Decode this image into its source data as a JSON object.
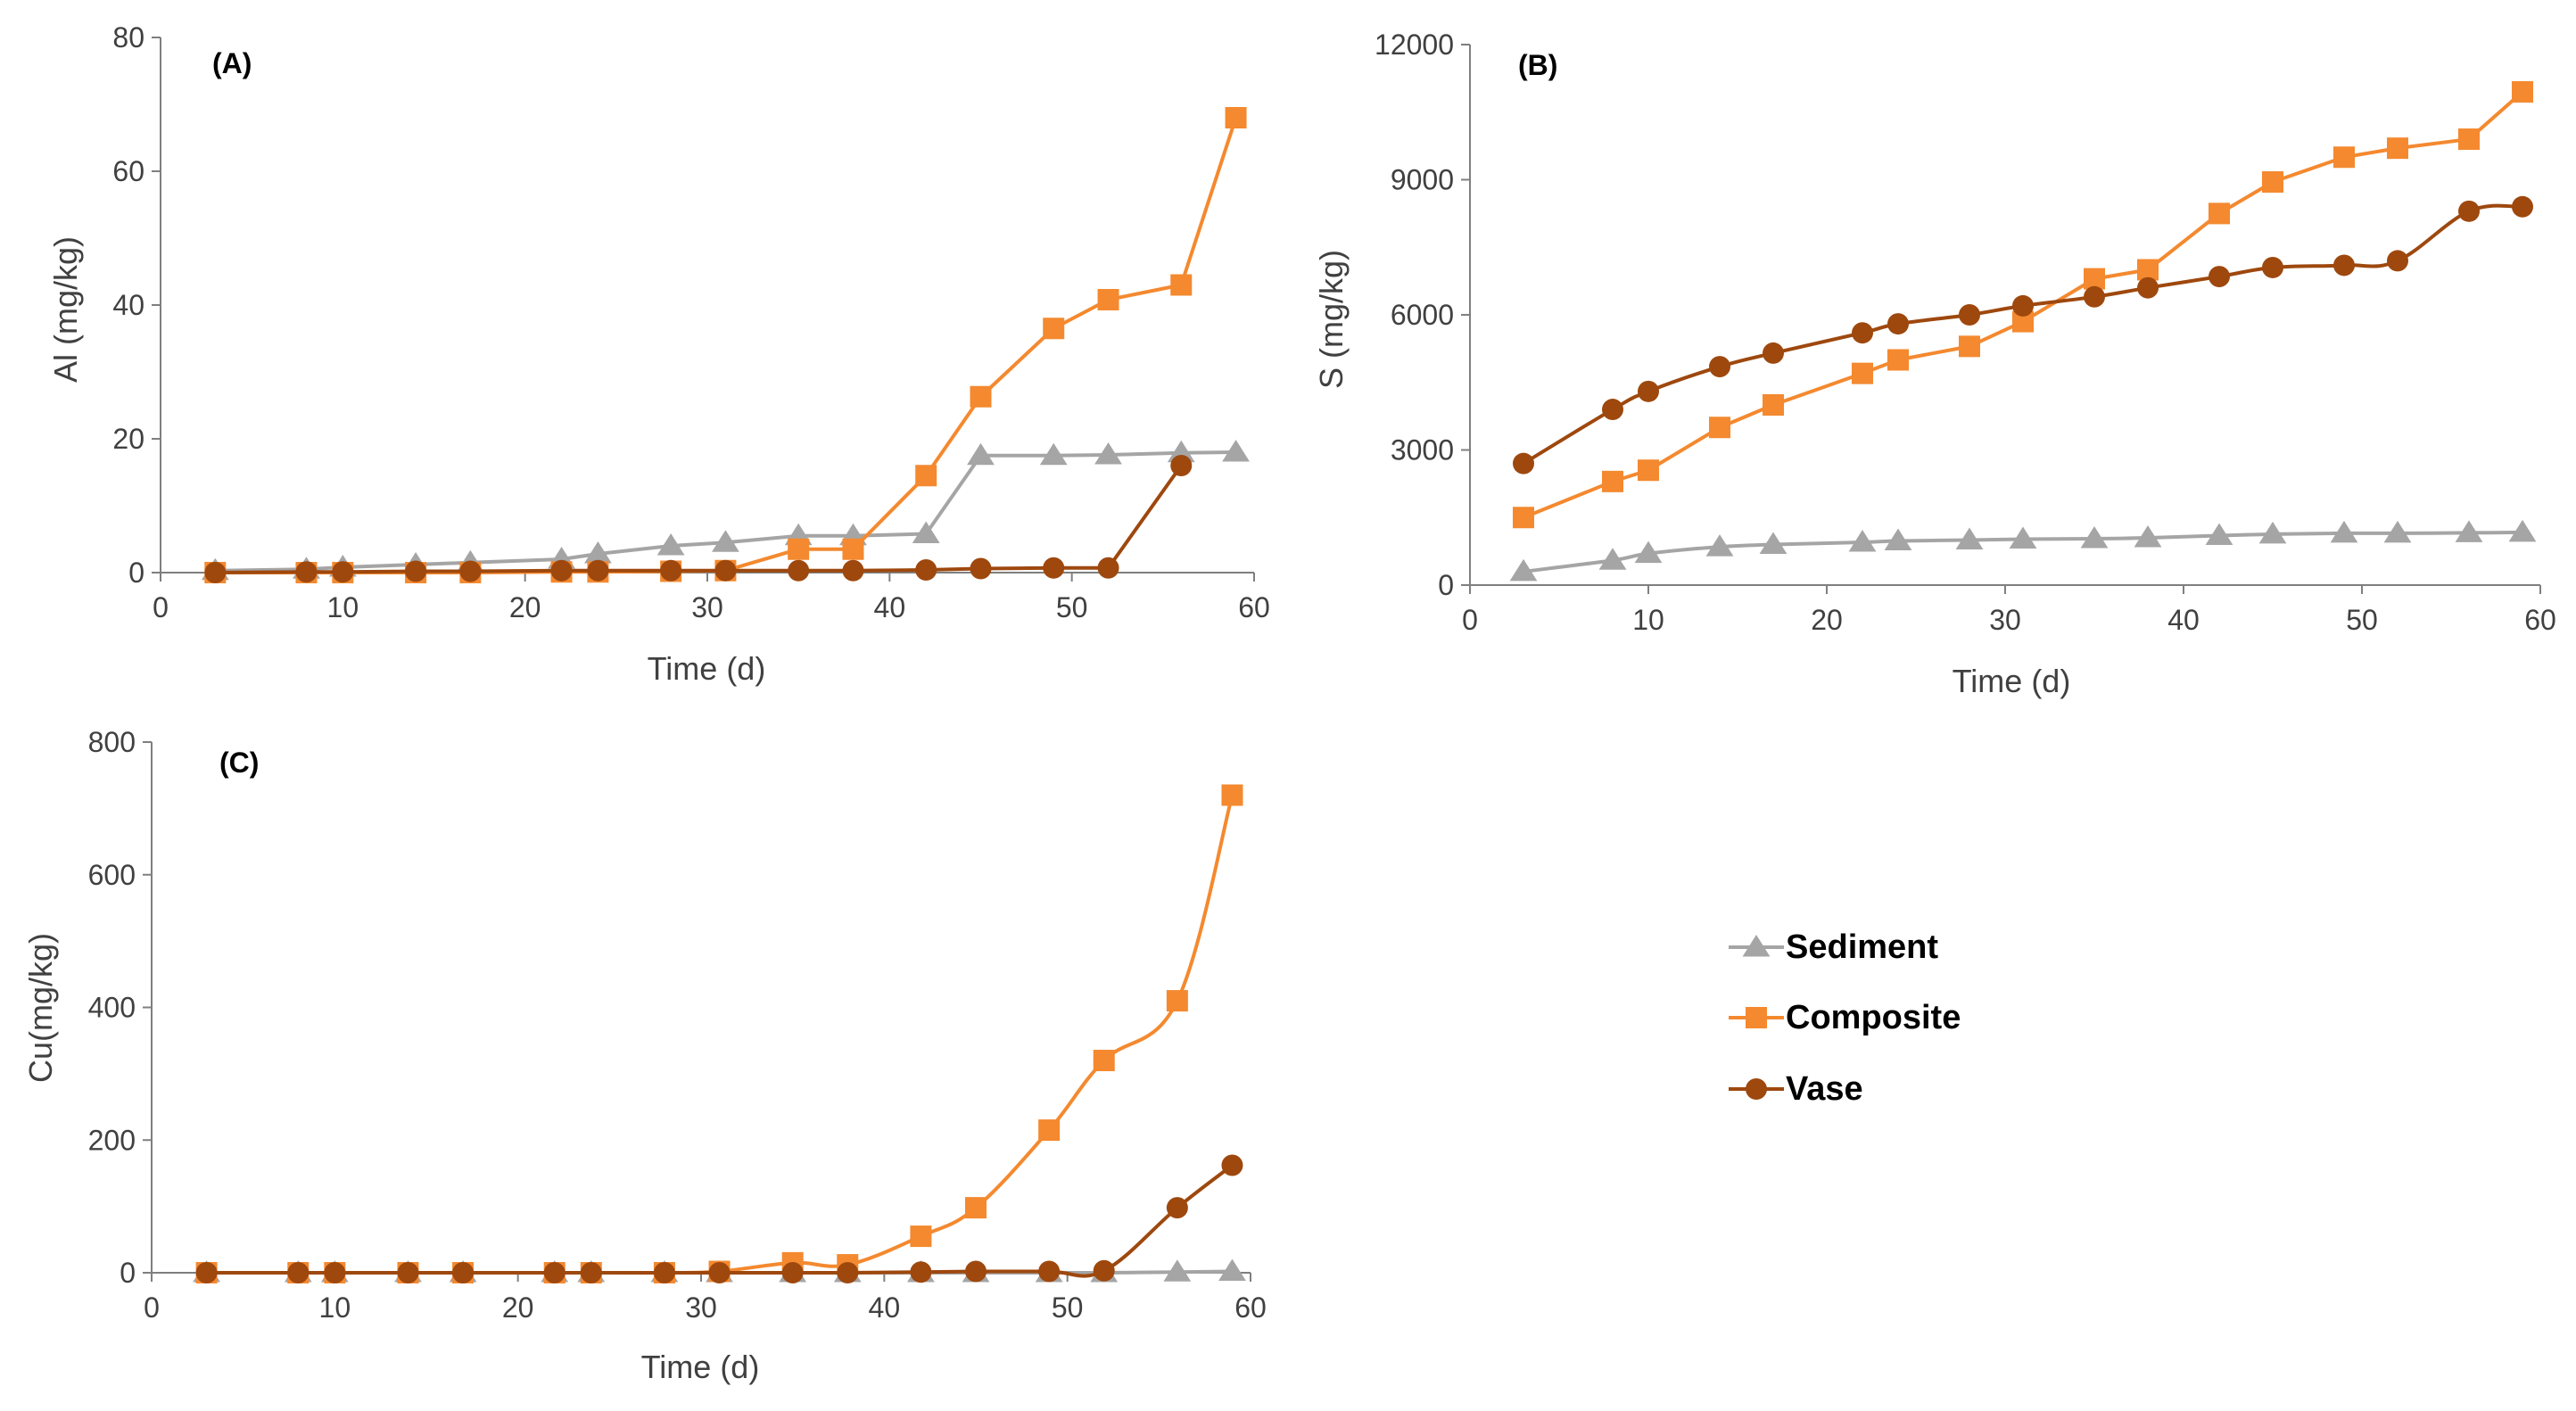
{
  "colors": {
    "sediment": "#A5A5A5",
    "composite": "#F4892F",
    "vase": "#9E480E",
    "axis": "#7F7F7F",
    "text": "#404040"
  },
  "legend": {
    "items": [
      {
        "label": "Sediment",
        "series": "sediment",
        "marker": "triangle"
      },
      {
        "label": "Composite",
        "series": "composite",
        "marker": "square"
      },
      {
        "label": "Vase",
        "series": "vase",
        "marker": "circle"
      }
    ]
  },
  "chart_data": [
    {
      "id": "A",
      "type": "line",
      "title": "(A)",
      "xlabel": "Time (d)",
      "ylabel": "Al (mg/kg)",
      "xlim": [
        0,
        60
      ],
      "ylim": [
        0,
        80
      ],
      "xticks": [
        0,
        10,
        20,
        30,
        40,
        50,
        60
      ],
      "yticks": [
        0,
        20,
        40,
        60,
        80
      ],
      "grid": false,
      "series": [
        {
          "name": "Sediment",
          "key": "sediment",
          "marker": "triangle",
          "smooth": false,
          "x": [
            3,
            8,
            10,
            14,
            17,
            22,
            24,
            28,
            31,
            35,
            38,
            42,
            45,
            49,
            52,
            56,
            59
          ],
          "values": [
            0.3,
            0.5,
            0.8,
            1.2,
            1.5,
            2,
            2.8,
            4,
            4.5,
            5.5,
            5.5,
            5.8,
            17.5,
            17.5,
            17.6,
            17.9,
            18
          ]
        },
        {
          "name": "Composite",
          "key": "composite",
          "marker": "square",
          "smooth": false,
          "x": [
            3,
            8,
            10,
            14,
            17,
            22,
            24,
            28,
            31,
            35,
            38,
            42,
            45,
            49,
            52,
            56,
            59
          ],
          "values": [
            0,
            0,
            0,
            0,
            0,
            0.1,
            0.1,
            0.2,
            0.3,
            3.5,
            3.5,
            14.5,
            26.3,
            36.5,
            40.8,
            43,
            68
          ]
        },
        {
          "name": "Vase",
          "key": "vase",
          "marker": "circle",
          "smooth": false,
          "x": [
            3,
            8,
            10,
            14,
            17,
            22,
            24,
            28,
            31,
            35,
            38,
            42,
            45,
            49,
            52,
            56
          ],
          "values": [
            0,
            0.1,
            0.1,
            0.2,
            0.2,
            0.3,
            0.3,
            0.3,
            0.3,
            0.3,
            0.3,
            0.4,
            0.6,
            0.7,
            0.7,
            16
          ]
        }
      ]
    },
    {
      "id": "B",
      "type": "line",
      "title": "(B)",
      "xlabel": "Time (d)",
      "ylabel": "S (mg/kg)",
      "xlim": [
        0,
        60
      ],
      "ylim": [
        0,
        12000
      ],
      "xticks": [
        0,
        10,
        20,
        30,
        40,
        50,
        60
      ],
      "yticks": [
        0,
        3000,
        6000,
        9000,
        12000
      ],
      "grid": false,
      "series": [
        {
          "name": "Sediment",
          "key": "sediment",
          "marker": "triangle",
          "smooth": true,
          "x": [
            3,
            8,
            10,
            14,
            17,
            22,
            24,
            28,
            31,
            35,
            38,
            42,
            45,
            49,
            52,
            56,
            59
          ],
          "values": [
            300,
            550,
            700,
            850,
            900,
            950,
            980,
            1000,
            1020,
            1030,
            1050,
            1100,
            1130,
            1150,
            1150,
            1160,
            1170
          ]
        },
        {
          "name": "Composite",
          "key": "composite",
          "marker": "square",
          "smooth": false,
          "x": [
            3,
            8,
            10,
            14,
            17,
            22,
            24,
            28,
            31,
            35,
            38,
            42,
            45,
            49,
            52,
            56,
            59
          ],
          "values": [
            1500,
            2300,
            2550,
            3500,
            4000,
            4700,
            5000,
            5300,
            5850,
            6800,
            7000,
            8250,
            8950,
            9500,
            9700,
            9900,
            10950
          ]
        },
        {
          "name": "Vase",
          "key": "vase",
          "marker": "circle",
          "smooth": true,
          "x": [
            3,
            8,
            10,
            14,
            17,
            22,
            24,
            28,
            31,
            35,
            38,
            42,
            45,
            49,
            52,
            56,
            59
          ],
          "values": [
            2700,
            3900,
            4300,
            4850,
            5150,
            5600,
            5800,
            6000,
            6200,
            6400,
            6600,
            6850,
            7050,
            7100,
            7200,
            8300,
            8400
          ]
        }
      ]
    },
    {
      "id": "C",
      "type": "line",
      "title": "(C)",
      "xlabel": "Time (d)",
      "ylabel": "Cu(mg/kg)",
      "xlim": [
        0,
        60
      ],
      "ylim": [
        0,
        800
      ],
      "xticks": [
        0,
        10,
        20,
        30,
        40,
        50,
        60
      ],
      "yticks": [
        0,
        200,
        400,
        600,
        800
      ],
      "grid": false,
      "series": [
        {
          "name": "Sediment",
          "key": "sediment",
          "marker": "triangle",
          "smooth": true,
          "x": [
            3,
            8,
            10,
            14,
            17,
            22,
            24,
            28,
            31,
            35,
            38,
            42,
            45,
            49,
            52,
            56,
            59
          ],
          "values": [
            0,
            0,
            0,
            0,
            0,
            0,
            0,
            0,
            0,
            0,
            0,
            0,
            0,
            0,
            0,
            1,
            2
          ]
        },
        {
          "name": "Composite",
          "key": "composite",
          "marker": "square",
          "smooth": true,
          "x": [
            3,
            8,
            10,
            14,
            17,
            22,
            24,
            28,
            31,
            35,
            38,
            42,
            45,
            49,
            52,
            56,
            59
          ],
          "values": [
            0,
            0,
            0,
            0,
            0,
            0,
            0,
            0,
            2,
            15,
            12,
            55,
            98,
            215,
            320,
            410,
            720
          ]
        },
        {
          "name": "Vase",
          "key": "vase",
          "marker": "circle",
          "smooth": true,
          "x": [
            3,
            8,
            10,
            14,
            17,
            22,
            24,
            28,
            31,
            35,
            38,
            42,
            45,
            49,
            52,
            56,
            59
          ],
          "values": [
            0,
            0,
            0,
            0,
            0,
            0,
            0,
            0,
            0,
            0,
            0,
            1,
            2,
            2,
            3,
            98,
            162
          ]
        }
      ]
    }
  ]
}
